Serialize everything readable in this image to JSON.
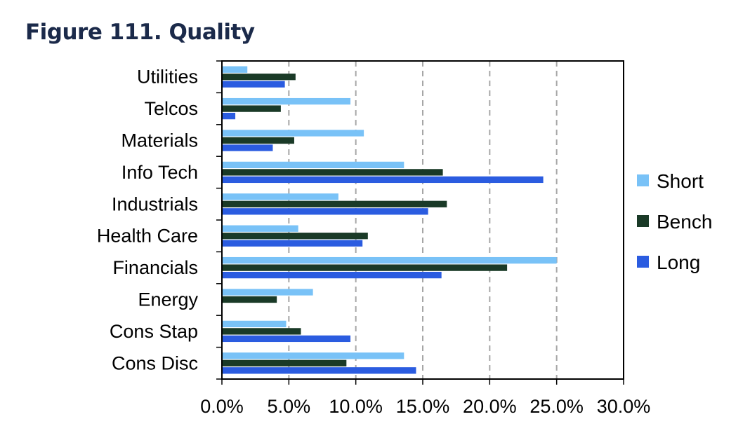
{
  "chart_data": {
    "type": "bar",
    "orientation": "horizontal",
    "title": "Figure 111. Quality",
    "categories": [
      "Utilities",
      "Telcos",
      "Materials",
      "Info Tech",
      "Industrials",
      "Health Care",
      "Financials",
      "Energy",
      "Cons Stap",
      "Cons Disc"
    ],
    "series": [
      {
        "name": "Short",
        "color": "#79c2f7",
        "values": [
          1.9,
          9.6,
          10.6,
          13.6,
          8.7,
          5.7,
          25.0,
          6.8,
          4.8,
          13.6
        ]
      },
      {
        "name": "Bench",
        "color": "#1a3a27",
        "values": [
          5.5,
          4.4,
          5.4,
          16.5,
          16.8,
          10.9,
          21.3,
          4.1,
          5.9,
          9.3
        ]
      },
      {
        "name": "Long",
        "color": "#2b5ce0",
        "values": [
          4.7,
          1.0,
          3.8,
          24.0,
          15.4,
          10.5,
          16.4,
          0.0,
          9.6,
          14.5
        ]
      }
    ],
    "xlim": [
      0,
      30
    ],
    "xticks": [
      "0.0%",
      "5.0%",
      "10.0%",
      "15.0%",
      "20.0%",
      "25.0%",
      "30.0%"
    ],
    "grid": "vertical dashed",
    "legend_position": "right"
  }
}
